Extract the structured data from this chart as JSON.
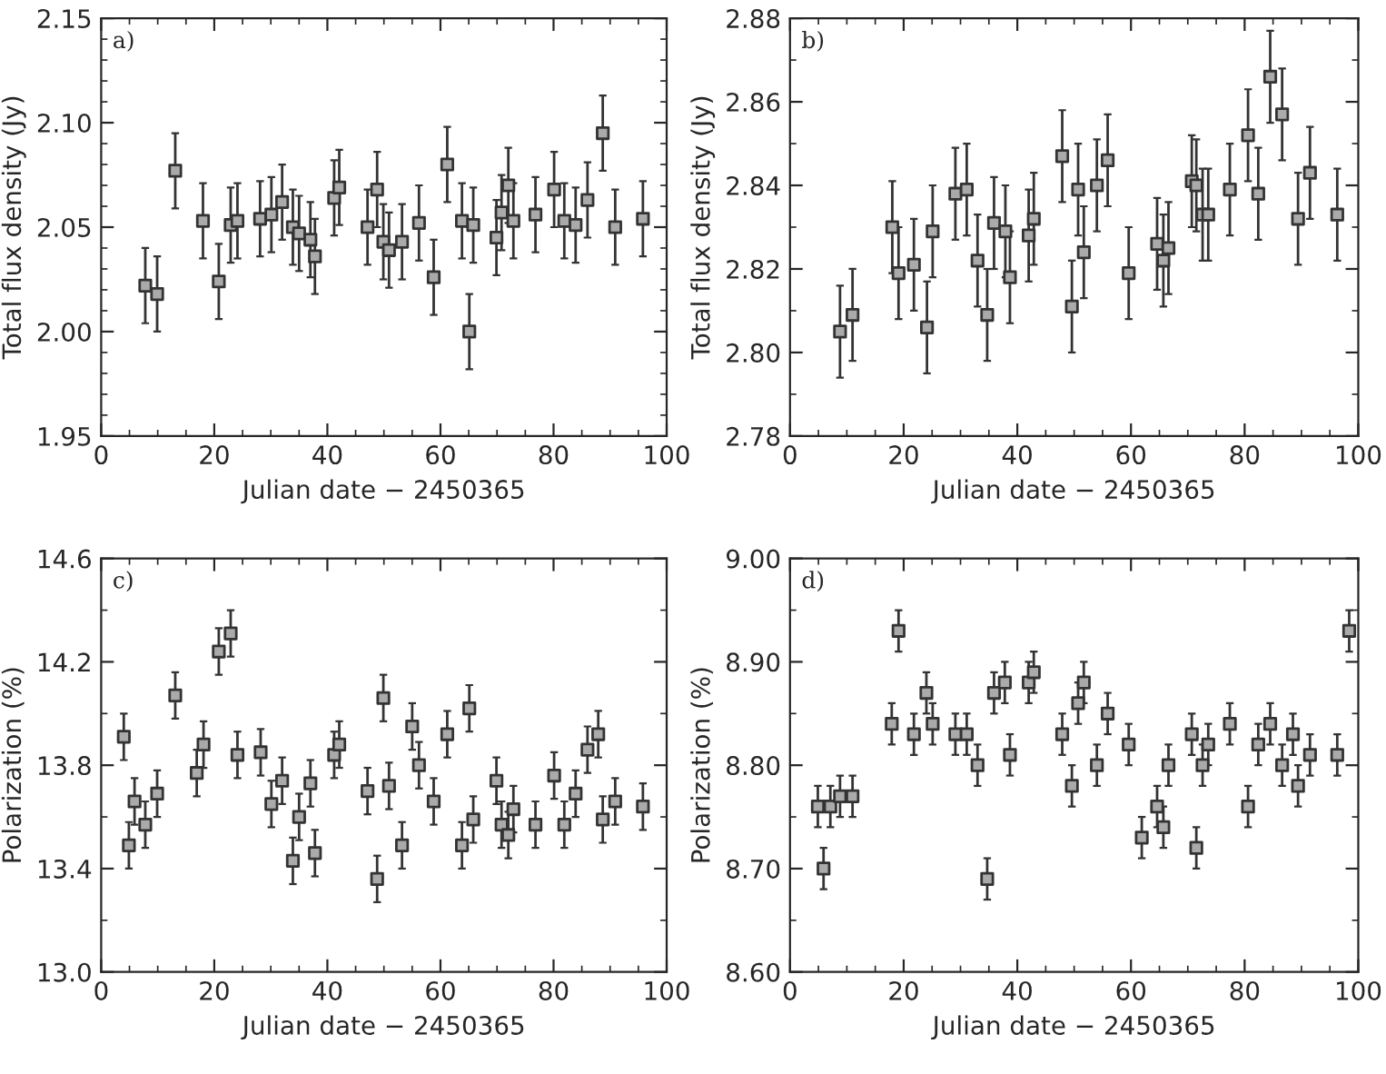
{
  "chart_data": [
    {
      "type": "scatter",
      "annotations": [
        "a)"
      ],
      "xlabel": "Julian date − 2450365",
      "ylabel": "Total flux density (Jy)",
      "marker": "square",
      "grid": false,
      "legend": false,
      "xlim": [
        0,
        100
      ],
      "xticks": [
        0,
        20,
        40,
        60,
        80,
        100
      ],
      "ylim": [
        1.95,
        2.15
      ],
      "yticks": [
        1.95,
        {
          "value": 2.0,
          "label": "2.00"
        },
        2.05,
        {
          "value": 2.1,
          "label": "2.10"
        },
        2.15
      ],
      "x": [
        7.8,
        9.9,
        13.1,
        18.0,
        20.8,
        22.9,
        24.1,
        28.1,
        30.1,
        32.0,
        33.9,
        35.0,
        37.0,
        37.8,
        41.2,
        42.1,
        47.1,
        48.8,
        49.9,
        50.9,
        53.2,
        56.2,
        58.8,
        61.2,
        63.8,
        65.1,
        65.8,
        69.9,
        70.8,
        72.0,
        72.9,
        76.8,
        80.1,
        81.9,
        83.9,
        86.0,
        88.7,
        90.9,
        95.8
      ],
      "series": [
        {
          "color": "#333333",
          "values": [
            2.022,
            2.018,
            2.077,
            2.053,
            2.024,
            2.051,
            2.053,
            2.054,
            2.056,
            2.062,
            2.05,
            2.047,
            2.044,
            2.036,
            2.064,
            2.069,
            2.05,
            2.068,
            2.043,
            2.039,
            2.043,
            2.052,
            2.026,
            2.08,
            2.053,
            2.0,
            2.051,
            2.045,
            2.057,
            2.07,
            2.053,
            2.056,
            2.068,
            2.053,
            2.051,
            2.063,
            2.095,
            2.05,
            2.054
          ],
          "errors": [
            0.018,
            0.018,
            0.018,
            0.018,
            0.018,
            0.018,
            0.018,
            0.018,
            0.018,
            0.018,
            0.018,
            0.018,
            0.018,
            0.018,
            0.018,
            0.018,
            0.018,
            0.018,
            0.018,
            0.018,
            0.018,
            0.018,
            0.018,
            0.018,
            0.018,
            0.018,
            0.018,
            0.018,
            0.018,
            0.018,
            0.018,
            0.018,
            0.018,
            0.018,
            0.018,
            0.018,
            0.018,
            0.018,
            0.018
          ]
        }
      ]
    },
    {
      "type": "scatter",
      "annotations": [
        "b)"
      ],
      "xlabel": "Julian date − 2450365",
      "ylabel": "Total flux density (Jy)",
      "marker": "square",
      "grid": false,
      "legend": false,
      "xlim": [
        0,
        100
      ],
      "xticks": [
        0,
        20,
        40,
        60,
        80,
        100
      ],
      "ylim": [
        2.78,
        2.88
      ],
      "yticks": [
        2.78,
        {
          "value": 2.8,
          "label": "2.80"
        },
        2.82,
        2.84,
        2.86,
        2.88
      ],
      "x": [
        8.8,
        11.0,
        18.0,
        19.1,
        21.8,
        24.1,
        25.1,
        29.1,
        31.1,
        33.0,
        34.7,
        35.9,
        37.9,
        38.7,
        42.0,
        42.9,
        47.9,
        49.6,
        50.7,
        51.7,
        54.0,
        55.9,
        59.6,
        64.6,
        65.7,
        66.6,
        70.7,
        71.5,
        72.6,
        73.6,
        77.4,
        80.6,
        82.4,
        84.5,
        86.6,
        89.4,
        91.5,
        96.3
      ],
      "series": [
        {
          "color": "#333333",
          "values": [
            2.805,
            2.809,
            2.83,
            2.819,
            2.821,
            2.806,
            2.829,
            2.838,
            2.839,
            2.822,
            2.809,
            2.831,
            2.829,
            2.818,
            2.828,
            2.832,
            2.847,
            2.811,
            2.839,
            2.824,
            2.84,
            2.846,
            2.819,
            2.826,
            2.822,
            2.825,
            2.841,
            2.84,
            2.833,
            2.833,
            2.839,
            2.852,
            2.838,
            2.866,
            2.857,
            2.832,
            2.843,
            2.833
          ],
          "errors": [
            0.011,
            0.011,
            0.011,
            0.011,
            0.011,
            0.011,
            0.011,
            0.011,
            0.011,
            0.011,
            0.011,
            0.011,
            0.011,
            0.011,
            0.011,
            0.011,
            0.011,
            0.011,
            0.011,
            0.011,
            0.011,
            0.011,
            0.011,
            0.011,
            0.011,
            0.011,
            0.011,
            0.011,
            0.011,
            0.011,
            0.011,
            0.011,
            0.011,
            0.011,
            0.011,
            0.011,
            0.011,
            0.011
          ]
        }
      ]
    },
    {
      "type": "scatter",
      "annotations": [
        "c)"
      ],
      "xlabel": "Julian date − 2450365",
      "ylabel": "Polarization (%)",
      "marker": "square",
      "grid": false,
      "legend": false,
      "xlim": [
        0,
        100
      ],
      "xticks": [
        0,
        20,
        40,
        60,
        80,
        100
      ],
      "ylim": [
        13.0,
        14.6
      ],
      "yticks": [
        {
          "value": 13.0,
          "label": "13.0"
        },
        13.4,
        13.8,
        14.2,
        14.6
      ],
      "x": [
        4.0,
        4.9,
        5.9,
        7.8,
        9.9,
        13.1,
        16.9,
        18.1,
        20.8,
        22.9,
        24.1,
        28.2,
        30.1,
        32.0,
        33.9,
        35.0,
        37.0,
        37.8,
        41.2,
        42.1,
        47.1,
        48.8,
        49.9,
        50.9,
        53.2,
        55.0,
        56.2,
        58.8,
        61.2,
        63.8,
        65.1,
        65.8,
        69.9,
        70.8,
        72.0,
        72.9,
        76.8,
        80.1,
        81.9,
        83.9,
        86.0,
        87.9,
        88.7,
        90.9,
        95.8
      ],
      "series": [
        {
          "color": "#333333",
          "values": [
            13.91,
            13.49,
            13.66,
            13.57,
            13.69,
            14.07,
            13.77,
            13.88,
            14.24,
            14.31,
            13.84,
            13.85,
            13.65,
            13.74,
            13.43,
            13.6,
            13.73,
            13.46,
            13.84,
            13.88,
            13.7,
            13.36,
            14.06,
            13.72,
            13.49,
            13.95,
            13.8,
            13.66,
            13.92,
            13.49,
            14.02,
            13.59,
            13.74,
            13.57,
            13.53,
            13.63,
            13.57,
            13.76,
            13.57,
            13.69,
            13.86,
            13.92,
            13.59,
            13.66,
            13.64
          ],
          "errors": [
            0.09,
            0.09,
            0.09,
            0.09,
            0.09,
            0.09,
            0.09,
            0.09,
            0.09,
            0.09,
            0.09,
            0.09,
            0.09,
            0.09,
            0.09,
            0.09,
            0.09,
            0.09,
            0.09,
            0.09,
            0.09,
            0.09,
            0.09,
            0.09,
            0.09,
            0.09,
            0.09,
            0.09,
            0.09,
            0.09,
            0.09,
            0.09,
            0.09,
            0.09,
            0.09,
            0.09,
            0.09,
            0.09,
            0.09,
            0.09,
            0.09,
            0.09,
            0.09,
            0.09,
            0.09
          ]
        }
      ]
    },
    {
      "type": "scatter",
      "annotations": [
        "d)"
      ],
      "xlabel": "Julian date − 2450365",
      "ylabel": "Polarization (%)",
      "marker": "square",
      "grid": false,
      "legend": false,
      "xlim": [
        0,
        100
      ],
      "xticks": [
        0,
        20,
        40,
        60,
        80,
        100
      ],
      "ylim": [
        8.6,
        9.0
      ],
      "yticks": [
        {
          "value": 8.6,
          "label": "8.60"
        },
        {
          "value": 8.7,
          "label": "8.70"
        },
        {
          "value": 8.8,
          "label": "8.80"
        },
        {
          "value": 8.9,
          "label": "8.90"
        },
        {
          "value": 9.0,
          "label": "9.00"
        }
      ],
      "x": [
        4.9,
        5.9,
        7.1,
        8.8,
        11.0,
        17.9,
        19.1,
        21.8,
        24.0,
        25.1,
        29.1,
        31.1,
        33.0,
        34.7,
        35.9,
        37.8,
        38.7,
        42.0,
        42.9,
        47.9,
        49.6,
        50.7,
        51.7,
        54.0,
        55.9,
        59.6,
        61.9,
        64.6,
        65.7,
        66.6,
        70.7,
        71.5,
        72.6,
        73.6,
        77.4,
        80.6,
        82.4,
        84.5,
        86.6,
        88.5,
        89.4,
        91.5,
        96.3,
        98.4
      ],
      "series": [
        {
          "color": "#333333",
          "values": [
            8.76,
            8.7,
            8.76,
            8.77,
            8.77,
            8.84,
            8.93,
            8.83,
            8.87,
            8.84,
            8.83,
            8.83,
            8.8,
            8.69,
            8.87,
            8.88,
            8.81,
            8.88,
            8.89,
            8.83,
            8.78,
            8.86,
            8.88,
            8.8,
            8.85,
            8.82,
            8.73,
            8.76,
            8.74,
            8.8,
            8.83,
            8.72,
            8.8,
            8.82,
            8.84,
            8.76,
            8.82,
            8.84,
            8.8,
            8.83,
            8.78,
            8.81,
            8.81,
            8.93
          ],
          "errors": [
            0.02,
            0.02,
            0.02,
            0.02,
            0.02,
            0.02,
            0.02,
            0.02,
            0.02,
            0.02,
            0.02,
            0.02,
            0.02,
            0.02,
            0.02,
            0.02,
            0.02,
            0.02,
            0.02,
            0.02,
            0.02,
            0.02,
            0.02,
            0.02,
            0.02,
            0.02,
            0.02,
            0.02,
            0.02,
            0.02,
            0.02,
            0.02,
            0.02,
            0.02,
            0.02,
            0.02,
            0.02,
            0.02,
            0.02,
            0.02,
            0.02,
            0.02,
            0.02,
            0.02
          ]
        }
      ]
    }
  ]
}
